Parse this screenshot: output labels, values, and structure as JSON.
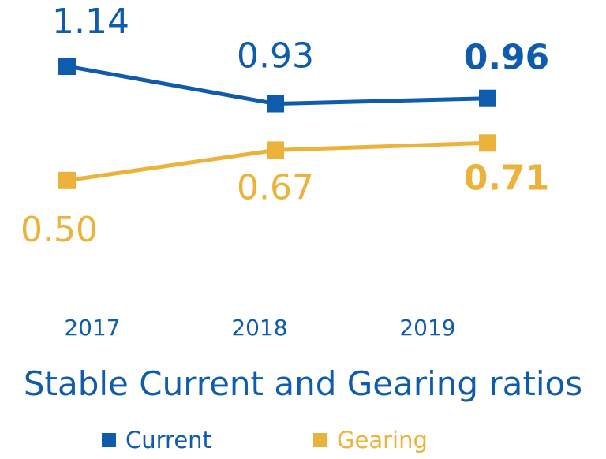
{
  "colors": {
    "current": "#0f5cad",
    "gearing": "#ebb33b",
    "title": "#0f5cad",
    "axis_text": "#0f5cad"
  },
  "chart_data": {
    "type": "line",
    "title": "Stable Current and Gearing ratios",
    "categories": [
      "2017",
      "2018",
      "2019"
    ],
    "series": [
      {
        "name": "Current",
        "values": [
          1.14,
          0.93,
          0.96
        ],
        "labels": [
          "1.14",
          "0.93",
          "0.96"
        ]
      },
      {
        "name": "Gearing",
        "values": [
          0.5,
          0.67,
          0.71
        ],
        "labels": [
          "0.50",
          "0.67",
          "0.71"
        ]
      }
    ],
    "last_value_bold": true,
    "legend_position": "bottom",
    "grid": false,
    "y_axis_shown": false
  }
}
